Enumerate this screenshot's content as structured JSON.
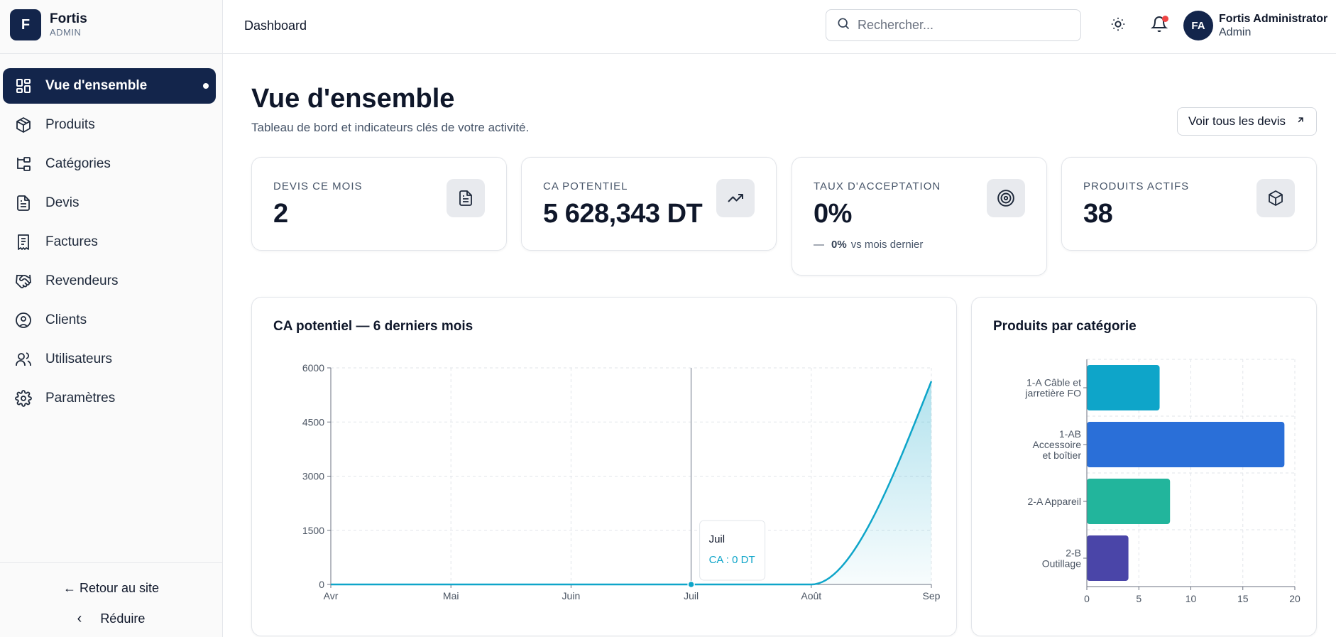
{
  "brand": {
    "initial": "F",
    "name": "Fortis",
    "role": "ADMIN"
  },
  "sidebar": {
    "items": [
      {
        "label": "Vue d'ensemble",
        "icon": "dashboard-icon",
        "active": true
      },
      {
        "label": "Produits",
        "icon": "package-icon"
      },
      {
        "label": "Catégories",
        "icon": "folder-tree-icon"
      },
      {
        "label": "Devis",
        "icon": "file-text-icon"
      },
      {
        "label": "Factures",
        "icon": "receipt-icon"
      },
      {
        "label": "Revendeurs",
        "icon": "handshake-icon"
      },
      {
        "label": "Clients",
        "icon": "user-circle-icon"
      },
      {
        "label": "Utilisateurs",
        "icon": "users-icon"
      },
      {
        "label": "Paramètres",
        "icon": "gear-icon"
      }
    ],
    "back_label": "← Retour au site",
    "collapse_label": "Réduire"
  },
  "header": {
    "title": "Dashboard",
    "search_placeholder": "Rechercher...",
    "user_initials": "FA",
    "user_name": "Fortis Administrator",
    "user_role": "Admin"
  },
  "main": {
    "title": "Vue d'ensemble",
    "subtitle": "Tableau de bord et indicateurs clés de votre activité.",
    "view_all_label": "Voir tous les devis"
  },
  "kpis": [
    {
      "label": "DEVIS CE MOIS",
      "value": "2",
      "icon": "file-text-icon"
    },
    {
      "label": "CA POTENTIEL",
      "value": "5 628,343 DT",
      "icon": "trending-up-icon"
    },
    {
      "label": "TAUX D'ACCEPTATION",
      "value": "0%",
      "icon": "target-icon",
      "trend_value": "0%",
      "trend_text": "vs mois dernier"
    },
    {
      "label": "PRODUITS ACTIFS",
      "value": "38",
      "icon": "box-icon"
    }
  ],
  "colors": {
    "primary": "#13254b",
    "line": "#0ea5c9",
    "notification": "#ef4444"
  },
  "chart_data": [
    {
      "type": "area",
      "title": "CA potentiel — 6 derniers mois",
      "categories": [
        "Avr",
        "Mai",
        "Juin",
        "Juil",
        "Août",
        "Sep"
      ],
      "values": [
        0,
        0,
        0,
        0,
        0,
        5628.343
      ],
      "yticks": [
        0,
        1500,
        3000,
        4500,
        6000
      ],
      "ylim": [
        0,
        6000
      ],
      "grid": true,
      "tooltip": {
        "category": "Juil",
        "text": "CA : 0 DT"
      }
    },
    {
      "type": "bar",
      "orientation": "horizontal",
      "title": "Produits par catégorie",
      "categories": [
        [
          "1-A Câble et",
          "jarretière FO"
        ],
        [
          "1-AB",
          "Accessoire",
          "et boîtier"
        ],
        [
          "2-A Appareil"
        ],
        [
          "2-B",
          "Outillage"
        ]
      ],
      "values": [
        7,
        19,
        8,
        4
      ],
      "colors": [
        "#0ea5c9",
        "#2a6fd8",
        "#22b59c",
        "#4a45a8"
      ],
      "xticks": [
        0,
        5,
        10,
        15,
        20
      ],
      "xlim": [
        0,
        20
      ],
      "grid": true
    }
  ]
}
